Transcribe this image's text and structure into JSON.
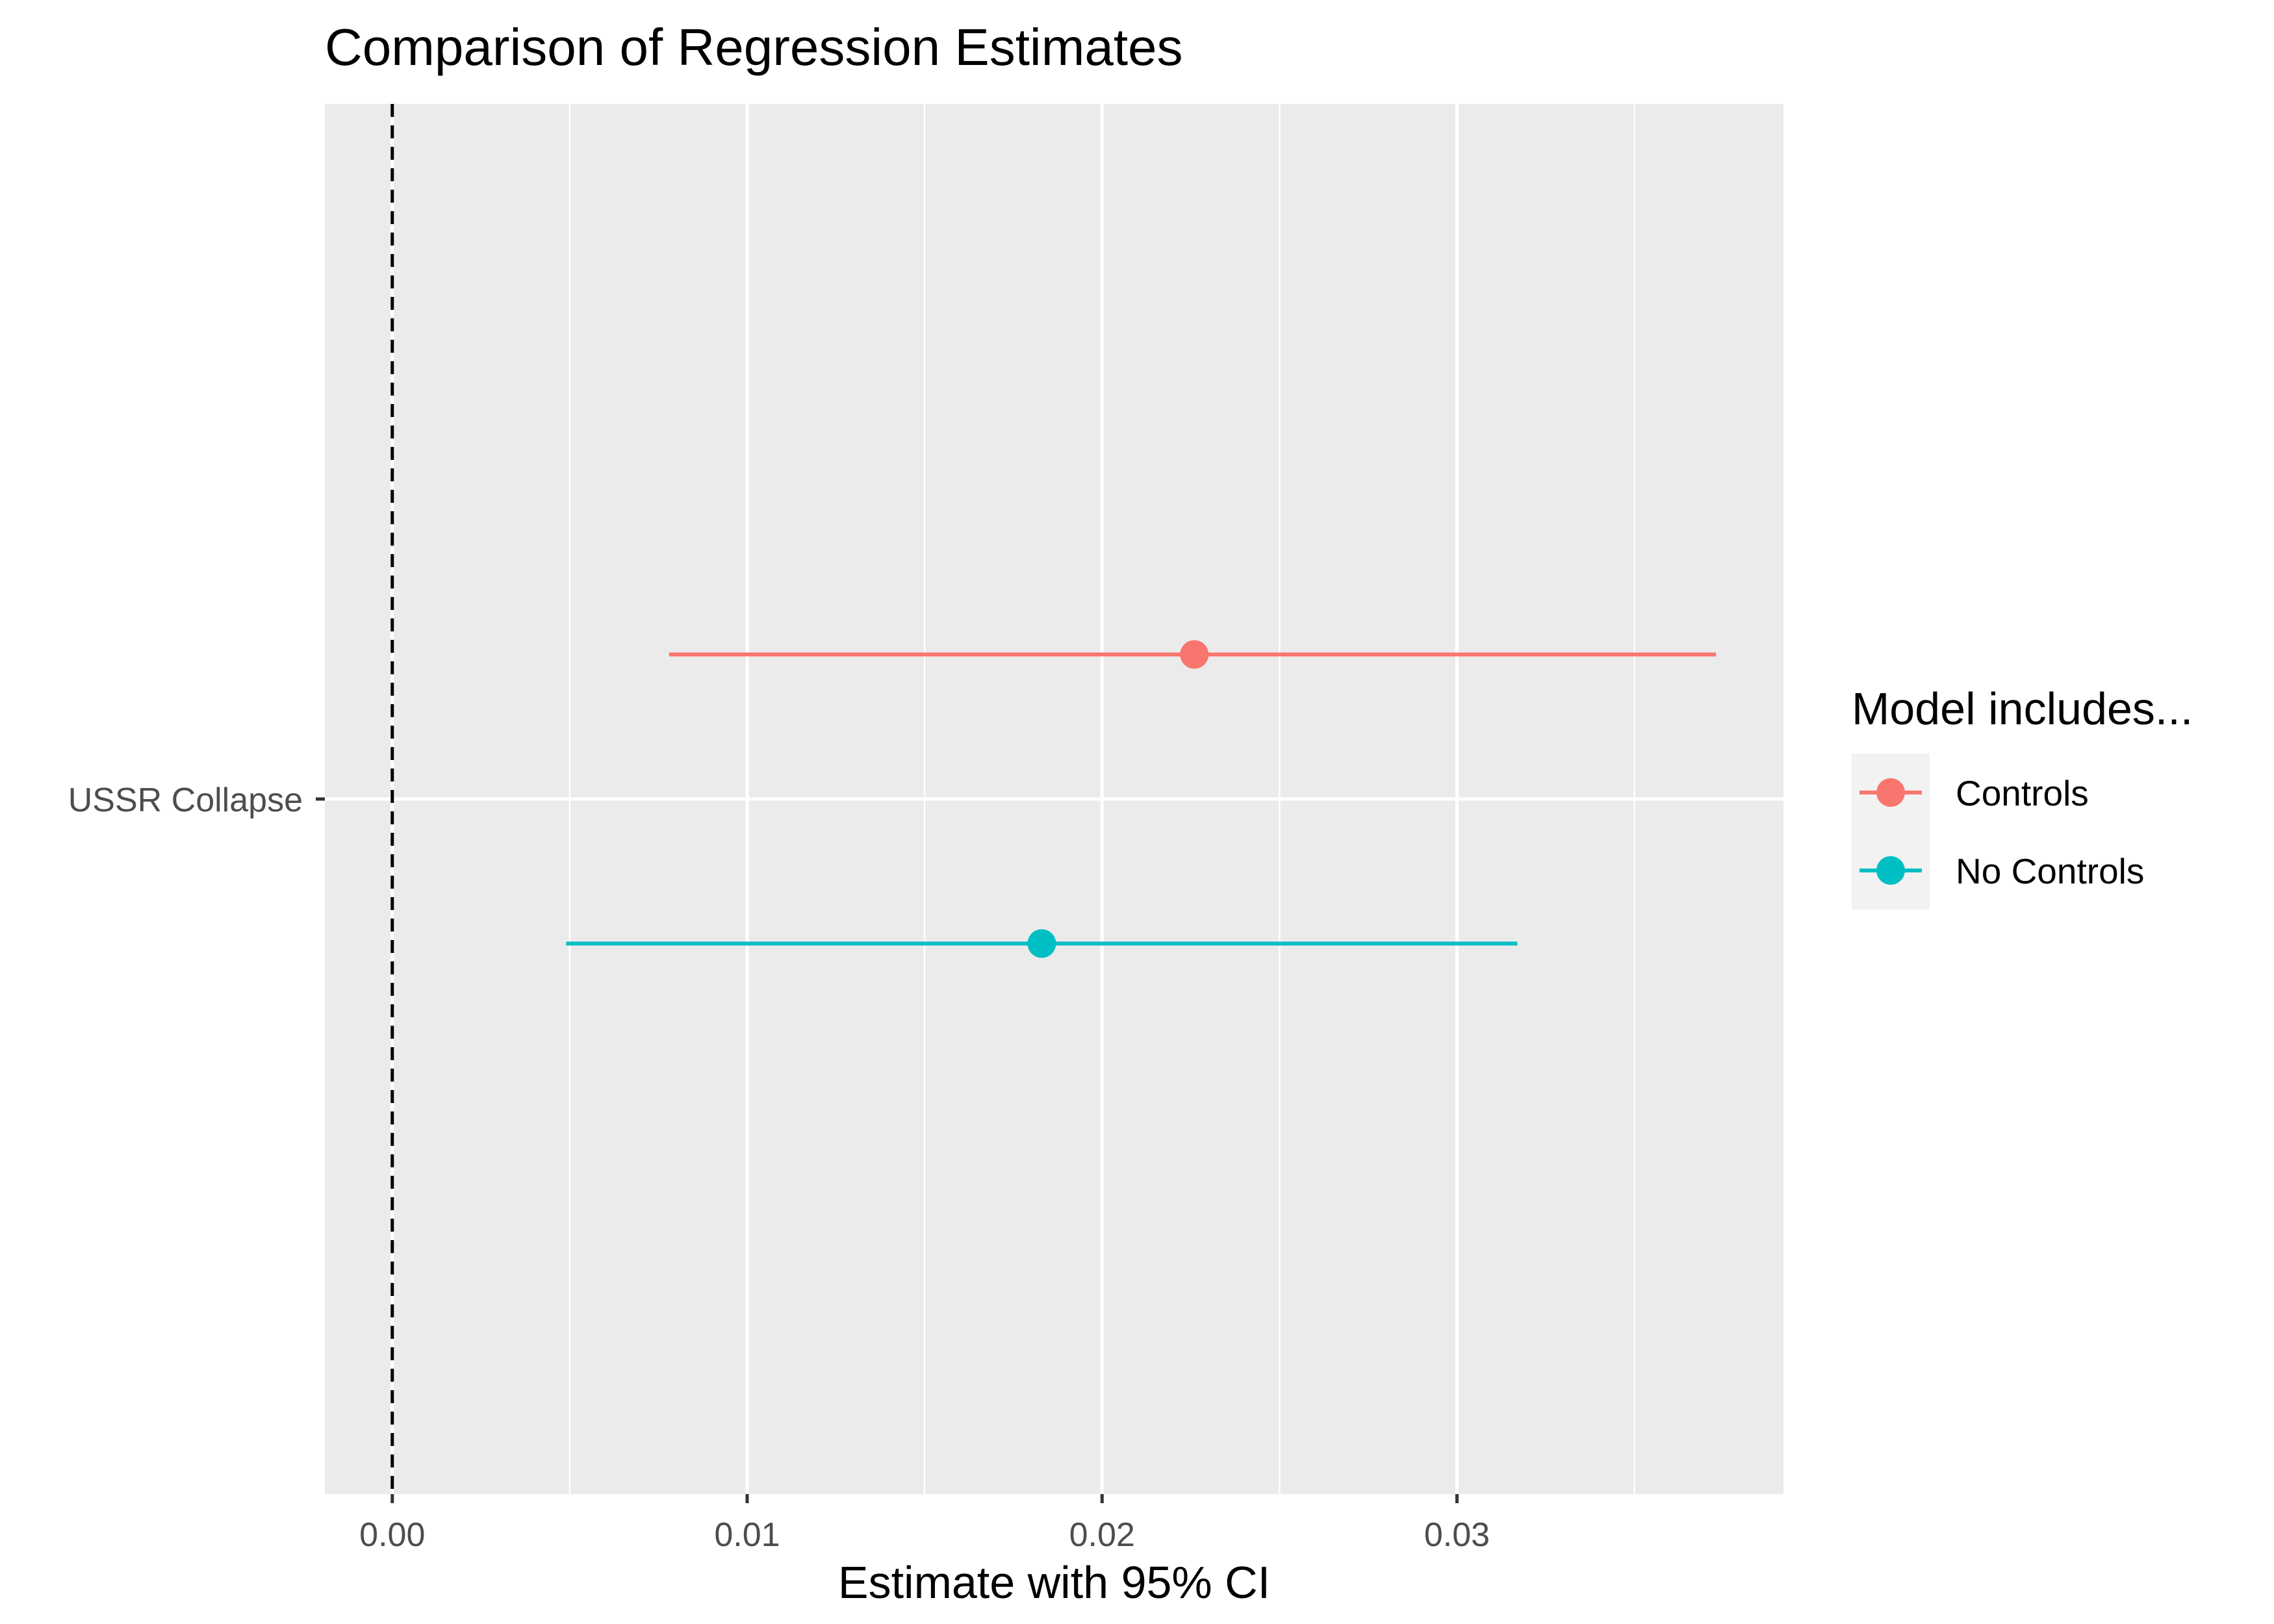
{
  "chart_data": {
    "type": "dot-and-whisker",
    "title": "Comparison of Regression Estimates",
    "xlabel": "Estimate with 95% CI",
    "ylabel": "",
    "categories": [
      "USSR Collapse"
    ],
    "xlim": [
      -0.0019,
      0.0392
    ],
    "x_ticks": [
      0.0,
      0.01,
      0.02,
      0.03
    ],
    "x_tick_labels": [
      "0.00",
      "0.01",
      "0.02",
      "0.03"
    ],
    "reference_line": {
      "x": 0,
      "style": "dashed",
      "color": "#000000"
    },
    "grid": true,
    "panel_background": "#ebebeb",
    "legend": {
      "title": "Model includes...",
      "placement": "right",
      "entries": [
        {
          "label": "Controls",
          "color": "#f8766d"
        },
        {
          "label": "No Controls",
          "color": "#00bfc4"
        }
      ]
    },
    "series": [
      {
        "name": "Controls",
        "color": "#f8766d",
        "category": "USSR Collapse",
        "estimate": 0.0226,
        "ci_low": 0.0078,
        "ci_high": 0.0373
      },
      {
        "name": "No Controls",
        "color": "#00bfc4",
        "category": "USSR Collapse",
        "estimate": 0.0183,
        "ci_low": 0.0049,
        "ci_high": 0.0317
      }
    ]
  }
}
